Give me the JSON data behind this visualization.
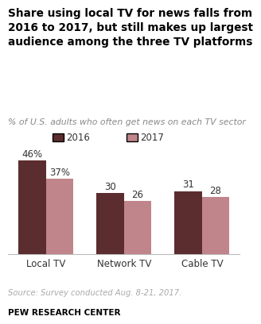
{
  "title_lines": [
    "Share using local TV for news falls from",
    "2016 to 2017, but still makes up largest",
    "audience among the three TV platforms"
  ],
  "subtitle": "% of U.S. adults who often get news on each TV sector",
  "categories": [
    "Local TV",
    "Network TV",
    "Cable TV"
  ],
  "values_2016": [
    46,
    30,
    31
  ],
  "values_2017": [
    37,
    26,
    28
  ],
  "labels_2016": [
    "46%",
    "30",
    "31"
  ],
  "labels_2017": [
    "37%",
    "26",
    "28"
  ],
  "color_2016": "#5c2d2e",
  "color_2017": "#c0858a",
  "source": "Source: Survey conducted Aug. 8-21, 2017.",
  "footer": "PEW RESEARCH CENTER",
  "legend_2016": "2016",
  "legend_2017": "2017",
  "ylim": [
    0,
    52
  ],
  "bar_width": 0.35,
  "background_color": "#ffffff"
}
